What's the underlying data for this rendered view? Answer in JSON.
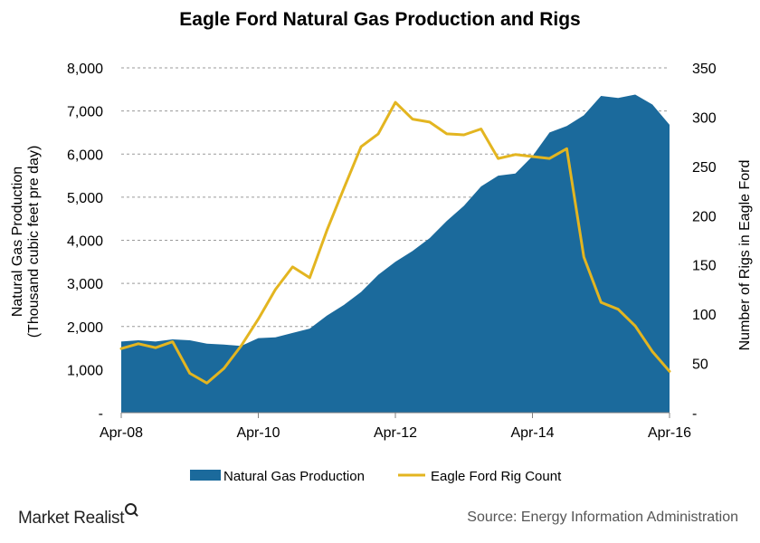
{
  "chart_data": {
    "type": "area+line",
    "title": "Eagle Ford Natural Gas Production and Rigs",
    "ylabel_left": [
      "Natural Gas Production",
      "(Thousand cubic feet pre day)"
    ],
    "ylabel_right": "Number of Rigs in Eagle Ford",
    "ylim_left": [
      0,
      8000
    ],
    "ylim_right": [
      0,
      350
    ],
    "left_tick_labels": [
      "-",
      "1,000",
      "2,000",
      "3,000",
      "4,000",
      "5,000",
      "6,000",
      "7,000",
      "8,000"
    ],
    "right_tick_labels": [
      "-",
      "50",
      "100",
      "150",
      "200",
      "250",
      "300",
      "350"
    ],
    "x_tick_labels": [
      "Apr-08",
      "Apr-10",
      "Apr-12",
      "Apr-14",
      "Apr-16"
    ],
    "grid": true,
    "legend_position": "bottom",
    "series": [
      {
        "name": "Natural Gas Production",
        "kind": "area",
        "color": "#1B6A9C",
        "x": [
          "2008-04",
          "2008-07",
          "2008-10",
          "2009-01",
          "2009-04",
          "2009-07",
          "2009-10",
          "2010-01",
          "2010-04",
          "2010-07",
          "2010-10",
          "2011-01",
          "2011-04",
          "2011-07",
          "2011-10",
          "2012-01",
          "2012-04",
          "2012-07",
          "2012-10",
          "2013-01",
          "2013-04",
          "2013-07",
          "2013-10",
          "2014-01",
          "2014-04",
          "2014-07",
          "2014-10",
          "2015-01",
          "2015-04",
          "2015-07",
          "2015-10",
          "2016-01",
          "2016-04"
        ],
        "y": [
          1650,
          1680,
          1650,
          1700,
          1680,
          1600,
          1580,
          1550,
          1730,
          1750,
          1850,
          1950,
          2250,
          2500,
          2800,
          3200,
          3500,
          3750,
          4050,
          4450,
          4800,
          5250,
          5500,
          5550,
          5950,
          6500,
          6650,
          6900,
          7350,
          7300,
          7380,
          7150,
          6680
        ]
      },
      {
        "name": "Eagle Ford Rig Count",
        "kind": "line",
        "color": "#E3B520",
        "x": [
          "2008-04",
          "2008-07",
          "2008-10",
          "2009-01",
          "2009-04",
          "2009-07",
          "2009-10",
          "2010-01",
          "2010-04",
          "2010-07",
          "2010-10",
          "2011-01",
          "2011-04",
          "2011-07",
          "2011-10",
          "2012-01",
          "2012-04",
          "2012-07",
          "2012-10",
          "2013-01",
          "2013-04",
          "2013-07",
          "2013-10",
          "2014-01",
          "2014-04",
          "2014-07",
          "2014-10",
          "2015-01",
          "2015-04",
          "2015-07",
          "2015-10",
          "2016-01",
          "2016-04"
        ],
        "y": [
          65,
          70,
          66,
          72,
          40,
          30,
          45,
          68,
          95,
          125,
          148,
          137,
          185,
          228,
          270,
          283,
          315,
          298,
          295,
          283,
          282,
          288,
          258,
          262,
          260,
          258,
          268,
          158,
          112,
          105,
          88,
          62,
          42
        ]
      }
    ]
  },
  "footer": {
    "brand": "Market Realist",
    "source": "Source:  Energy  Information  Administration"
  }
}
